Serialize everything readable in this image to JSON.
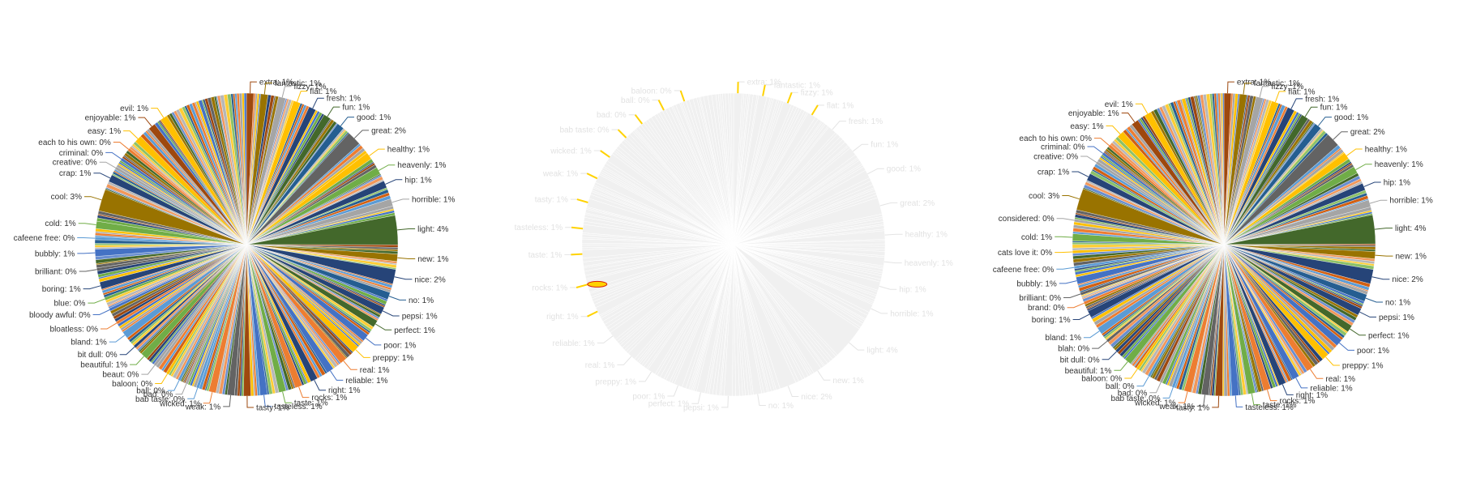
{
  "palette": [
    "#5b9bd5",
    "#ed7d31",
    "#a5a5a5",
    "#ffc000",
    "#4472c4",
    "#70ad47",
    "#264478",
    "#9e480e",
    "#636363",
    "#997300",
    "#43682b",
    "#698ed0",
    "#f1975a",
    "#b7b7b7",
    "#ffcd33",
    "#8cc168",
    "#255e91",
    "#d26012"
  ],
  "chart_data": [
    {
      "type": "pie",
      "title": "",
      "view": "normal",
      "named_slices": [
        {
          "label": "extra",
          "display": "extra: 1%",
          "value": 1,
          "color": "#9e480e"
        },
        {
          "label": "fantastic",
          "display": "fantastic: 1%",
          "value": 1,
          "color": "#997300"
        },
        {
          "label": "fizzy",
          "display": "fizzy: 1%",
          "value": 1,
          "color": "#a5a5a5"
        },
        {
          "label": "flat",
          "display": "flat: 1%",
          "value": 1,
          "color": "#ffc000"
        },
        {
          "label": "fresh",
          "display": "fresh: 1%",
          "value": 1,
          "color": "#264478"
        },
        {
          "label": "fun",
          "display": "fun: 1%",
          "value": 1,
          "color": "#43682b"
        },
        {
          "label": "good",
          "display": "good: 1%",
          "value": 1,
          "color": "#255e91"
        },
        {
          "label": "great",
          "display": "great: 2%",
          "value": 2,
          "color": "#636363"
        },
        {
          "label": "healthy",
          "display": "healthy: 1%",
          "value": 1,
          "color": "#ffc000"
        },
        {
          "label": "heavenly",
          "display": "heavenly: 1%",
          "value": 1,
          "color": "#70ad47"
        },
        {
          "label": "hip",
          "display": "hip: 1%",
          "value": 1,
          "color": "#264478"
        },
        {
          "label": "horrible",
          "display": "horrible: 1%",
          "value": 1,
          "color": "#a5a5a5"
        },
        {
          "label": "light",
          "display": "light: 4%",
          "value": 4,
          "color": "#43682b"
        },
        {
          "label": "new",
          "display": "new: 1%",
          "value": 1,
          "color": "#997300"
        },
        {
          "label": "nice",
          "display": "nice: 2%",
          "value": 2,
          "color": "#264478"
        },
        {
          "label": "no",
          "display": "no: 1%",
          "value": 1,
          "color": "#255e91"
        },
        {
          "label": "pepsi",
          "display": "pepsi: 1%",
          "value": 1,
          "color": "#264478"
        },
        {
          "label": "perfect",
          "display": "perfect: 1%",
          "value": 1,
          "color": "#43682b"
        },
        {
          "label": "poor",
          "display": "poor: 1%",
          "value": 1,
          "color": "#4472c4"
        },
        {
          "label": "preppy",
          "display": "preppy: 1%",
          "value": 1,
          "color": "#ffc000"
        },
        {
          "label": "real",
          "display": "real: 1%",
          "value": 1,
          "color": "#ed7d31"
        },
        {
          "label": "reliable",
          "display": "reliable: 1%",
          "value": 1,
          "color": "#4472c4"
        },
        {
          "label": "right",
          "display": "right: 1%",
          "value": 1,
          "color": "#264478"
        },
        {
          "label": "rocks",
          "display": "rocks: 1%",
          "value": 1,
          "color": "#ed7d31"
        },
        {
          "label": "taste",
          "display": "taste: 1%",
          "value": 1,
          "color": "#70ad47"
        },
        {
          "label": "tasteless",
          "display": "tasteless: 1%",
          "value": 1,
          "color": "#4472c4"
        },
        {
          "label": "tasty",
          "display": "tasty: 1%",
          "value": 1,
          "color": "#9e480e"
        },
        {
          "label": "weak",
          "display": "weak: 1%",
          "value": 1,
          "color": "#636363"
        },
        {
          "label": "wicked",
          "display": "wicked: 1%",
          "value": 1,
          "color": "#ed7d31"
        },
        {
          "label": "bab taste",
          "display": "bab taste: 0%",
          "value": 0.4,
          "color": "#5b9bd5"
        },
        {
          "label": "bad",
          "display": "bad: 0%",
          "value": 0.4,
          "color": "#a5a5a5"
        },
        {
          "label": "ball",
          "display": "ball: 0%",
          "value": 0.4,
          "color": "#5b9bd5"
        },
        {
          "label": "baloon",
          "display": "baloon: 0%",
          "value": 0.4,
          "color": "#ffc000"
        },
        {
          "label": "beaut",
          "display": "beaut: 0%",
          "value": 0.4,
          "color": "#a5a5a5"
        },
        {
          "label": "beautiful",
          "display": "beautiful: 1%",
          "value": 1,
          "color": "#70ad47"
        },
        {
          "label": "bit dull",
          "display": "bit dull: 0%",
          "value": 0.4,
          "color": "#264478"
        },
        {
          "label": "bland",
          "display": "bland: 1%",
          "value": 1,
          "color": "#5b9bd5"
        },
        {
          "label": "bloatless",
          "display": "bloatless: 0%",
          "value": 0.4,
          "color": "#ed7d31"
        },
        {
          "label": "bloody awful",
          "display": "bloody awful: 0%",
          "value": 0.4,
          "color": "#4472c4"
        },
        {
          "label": "blue",
          "display": "blue: 0%",
          "value": 0.4,
          "color": "#70ad47"
        },
        {
          "label": "boring",
          "display": "boring: 1%",
          "value": 1,
          "color": "#264478"
        },
        {
          "label": "brilliant",
          "display": "brilliant: 0%",
          "value": 0.4,
          "color": "#636363"
        },
        {
          "label": "bubbly",
          "display": "bubbly: 1%",
          "value": 1,
          "color": "#4472c4"
        },
        {
          "label": "cafeene free",
          "display": "cafeene free: 0%",
          "value": 0.4,
          "color": "#5b9bd5"
        },
        {
          "label": "cold",
          "display": "cold: 1%",
          "value": 1,
          "color": "#70ad47"
        },
        {
          "label": "cool",
          "display": "cool: 3%",
          "value": 3,
          "color": "#997300"
        },
        {
          "label": "crap",
          "display": "crap: 1%",
          "value": 1,
          "color": "#264478"
        },
        {
          "label": "creative",
          "display": "creative: 0%",
          "value": 0.4,
          "color": "#a5a5a5"
        },
        {
          "label": "criminal",
          "display": "criminal: 0%",
          "value": 0.4,
          "color": "#4472c4"
        },
        {
          "label": "each to his own",
          "display": "each to his own: 0%",
          "value": 0.4,
          "color": "#ed7d31"
        },
        {
          "label": "easy",
          "display": "easy: 1%",
          "value": 1,
          "color": "#ffc000"
        },
        {
          "label": "enjoyable",
          "display": "enjoyable: 1%",
          "value": 1,
          "color": "#9e480e"
        },
        {
          "label": "evil",
          "display": "evil: 1%",
          "value": 1,
          "color": "#ffc000"
        }
      ]
    },
    {
      "type": "pie",
      "title": "",
      "view": "faded-with-highlight",
      "named_slices": [
        {
          "label": "extra",
          "display": "extra: 1%",
          "value": 1
        },
        {
          "label": "fantastic",
          "display": "fantastic: 1%",
          "value": 1
        },
        {
          "label": "fizzy",
          "display": "fizzy: 1%",
          "value": 1
        },
        {
          "label": "flat",
          "display": "flat: 1%",
          "value": 1
        },
        {
          "label": "fresh",
          "display": "fresh: 1%",
          "value": 1
        },
        {
          "label": "fun",
          "display": "fun: 1%",
          "value": 1
        },
        {
          "label": "good",
          "display": "good: 1%",
          "value": 1
        },
        {
          "label": "great",
          "display": "great: 2%",
          "value": 2
        },
        {
          "label": "healthy",
          "display": "healthy: 1%",
          "value": 1
        },
        {
          "label": "heavenly",
          "display": "heavenly: 1%",
          "value": 1
        },
        {
          "label": "hip",
          "display": "hip: 1%",
          "value": 1
        },
        {
          "label": "horrible",
          "display": "horrible: 1%",
          "value": 1
        },
        {
          "label": "light",
          "display": "light: 4%",
          "value": 4
        },
        {
          "label": "new",
          "display": "new: 1%",
          "value": 1
        },
        {
          "label": "nice",
          "display": "nice: 2%",
          "value": 2
        },
        {
          "label": "no",
          "display": "no: 1%",
          "value": 1
        },
        {
          "label": "pepsi",
          "display": "pepsi: 1%",
          "value": 1
        },
        {
          "label": "perfect",
          "display": "perfect: 1%",
          "value": 1
        },
        {
          "label": "poor",
          "display": "poor: 1%",
          "value": 1
        },
        {
          "label": "preppy",
          "display": "preppy: 1%",
          "value": 1
        },
        {
          "label": "real",
          "display": "real: 1%",
          "value": 1
        },
        {
          "label": "reliable",
          "display": "reliable: 1%",
          "value": 1
        },
        {
          "label": "right",
          "display": "right: 1%",
          "value": 1
        },
        {
          "label": "rocks",
          "display": "rocks: 1%",
          "value": 1
        },
        {
          "label": "taste",
          "display": "taste: 1%",
          "value": 1
        },
        {
          "label": "tasteless",
          "display": "tasteless: 1%",
          "value": 1
        },
        {
          "label": "tasty",
          "display": "tasty: 1%",
          "value": 1
        },
        {
          "label": "weak",
          "display": "weak: 1%",
          "value": 1
        },
        {
          "label": "wicked",
          "display": "wicked: 1%",
          "value": 1
        },
        {
          "label": "bab taste",
          "display": "bab taste: 0%",
          "value": 0.4
        },
        {
          "label": "bad",
          "display": "bad: 0%",
          "value": 0.4
        },
        {
          "label": "ball",
          "display": "ball: 0%",
          "value": 0.4
        },
        {
          "label": "baloon",
          "display": "baloon: 0%",
          "value": 0.4
        }
      ]
    },
    {
      "type": "pie",
      "title": "",
      "view": "normal",
      "named_slices": [
        {
          "label": "extra",
          "display": "extra: 1%",
          "value": 1,
          "color": "#9e480e"
        },
        {
          "label": "fantastic",
          "display": "fantastic: 1%",
          "value": 1,
          "color": "#997300"
        },
        {
          "label": "fizzy",
          "display": "fizzy: 1%",
          "value": 1,
          "color": "#a5a5a5"
        },
        {
          "label": "flat",
          "display": "flat: 1%",
          "value": 1,
          "color": "#ffc000"
        },
        {
          "label": "fresh",
          "display": "fresh: 1%",
          "value": 1,
          "color": "#264478"
        },
        {
          "label": "fun",
          "display": "fun: 1%",
          "value": 1,
          "color": "#43682b"
        },
        {
          "label": "good",
          "display": "good: 1%",
          "value": 1,
          "color": "#255e91"
        },
        {
          "label": "great",
          "display": "great: 2%",
          "value": 2,
          "color": "#636363"
        },
        {
          "label": "healthy",
          "display": "healthy: 1%",
          "value": 1,
          "color": "#ffc000"
        },
        {
          "label": "heavenly",
          "display": "heavenly: 1%",
          "value": 1,
          "color": "#70ad47"
        },
        {
          "label": "hip",
          "display": "hip: 1%",
          "value": 1,
          "color": "#264478"
        },
        {
          "label": "horrible",
          "display": "horrible: 1%",
          "value": 1,
          "color": "#a5a5a5"
        },
        {
          "label": "light",
          "display": "light: 4%",
          "value": 4,
          "color": "#43682b"
        },
        {
          "label": "new",
          "display": "new: 1%",
          "value": 1,
          "color": "#997300"
        },
        {
          "label": "nice",
          "display": "nice: 2%",
          "value": 2,
          "color": "#264478"
        },
        {
          "label": "no",
          "display": "no: 1%",
          "value": 1,
          "color": "#255e91"
        },
        {
          "label": "pepsi",
          "display": "pepsi: 1%",
          "value": 1,
          "color": "#264478"
        },
        {
          "label": "perfect",
          "display": "perfect: 1%",
          "value": 1,
          "color": "#43682b"
        },
        {
          "label": "poor",
          "display": "poor: 1%",
          "value": 1,
          "color": "#4472c4"
        },
        {
          "label": "preppy",
          "display": "preppy: 1%",
          "value": 1,
          "color": "#ffc000"
        },
        {
          "label": "real",
          "display": "real: 1%",
          "value": 1,
          "color": "#ed7d31"
        },
        {
          "label": "reliable",
          "display": "reliable: 1%",
          "value": 1,
          "color": "#4472c4"
        },
        {
          "label": "right",
          "display": "right: 1%",
          "value": 1,
          "color": "#264478"
        },
        {
          "label": "rocks",
          "display": "rocks: 1%",
          "value": 1,
          "color": "#ed7d31"
        },
        {
          "label": "taste",
          "display": "taste: 1%",
          "value": 1,
          "color": "#70ad47"
        },
        {
          "label": "tasteless",
          "display": "tasteless: 1%",
          "value": 1,
          "color": "#4472c4"
        },
        {
          "label": "tasty",
          "display": "tasty: 1%",
          "value": 1,
          "color": "#9e480e"
        },
        {
          "label": "weak",
          "display": "weak: 1%",
          "value": 1,
          "color": "#636363"
        },
        {
          "label": "wicked",
          "display": "wicked: 1%",
          "value": 1,
          "color": "#ed7d31"
        },
        {
          "label": "bab taste",
          "display": "bab taste: 0%",
          "value": 0.4,
          "color": "#5b9bd5"
        },
        {
          "label": "bad",
          "display": "bad: 0%",
          "value": 0.4,
          "color": "#a5a5a5"
        },
        {
          "label": "ball",
          "display": "ball: 0%",
          "value": 0.4,
          "color": "#5b9bd5"
        },
        {
          "label": "baloon",
          "display": "baloon: 0%",
          "value": 0.4,
          "color": "#ffc000"
        },
        {
          "label": "beautiful",
          "display": "beautiful: 1%",
          "value": 1,
          "color": "#70ad47"
        },
        {
          "label": "bit dull",
          "display": "bit dull: 0%",
          "value": 0.4,
          "color": "#264478"
        },
        {
          "label": "blah",
          "display": "blah: 0%",
          "value": 0.4,
          "color": "#636363"
        },
        {
          "label": "bland",
          "display": "bland: 1%",
          "value": 1,
          "color": "#5b9bd5"
        },
        {
          "label": "boring",
          "display": "boring: 1%",
          "value": 1,
          "color": "#264478"
        },
        {
          "label": "brand",
          "display": "brand: 0%",
          "value": 0.4,
          "color": "#ed7d31"
        },
        {
          "label": "brilliant",
          "display": "brilliant: 0%",
          "value": 0.4,
          "color": "#636363"
        },
        {
          "label": "bubbly",
          "display": "bubbly: 1%",
          "value": 1,
          "color": "#4472c4"
        },
        {
          "label": "cafeene free",
          "display": "cafeene free: 0%",
          "value": 0.4,
          "color": "#5b9bd5"
        },
        {
          "label": "cats love it",
          "display": "cats love it: 0%",
          "value": 0.4,
          "color": "#ffc000"
        },
        {
          "label": "cold",
          "display": "cold: 1%",
          "value": 1,
          "color": "#70ad47"
        },
        {
          "label": "considered",
          "display": "considered: 0%",
          "value": 0.4,
          "color": "#a5a5a5"
        },
        {
          "label": "cool",
          "display": "cool: 3%",
          "value": 3,
          "color": "#997300"
        },
        {
          "label": "crap",
          "display": "crap: 1%",
          "value": 1,
          "color": "#264478"
        },
        {
          "label": "creative",
          "display": "creative: 0%",
          "value": 0.4,
          "color": "#a5a5a5"
        },
        {
          "label": "criminal",
          "display": "criminal: 0%",
          "value": 0.4,
          "color": "#4472c4"
        },
        {
          "label": "each to his own",
          "display": "each to his own: 0%",
          "value": 0.4,
          "color": "#ed7d31"
        },
        {
          "label": "easy",
          "display": "easy: 1%",
          "value": 1,
          "color": "#ffc000"
        },
        {
          "label": "enjoyable",
          "display": "enjoyable: 1%",
          "value": 1,
          "color": "#9e480e"
        },
        {
          "label": "evil",
          "display": "evil: 1%",
          "value": 1,
          "color": "#ffc000"
        }
      ]
    }
  ]
}
